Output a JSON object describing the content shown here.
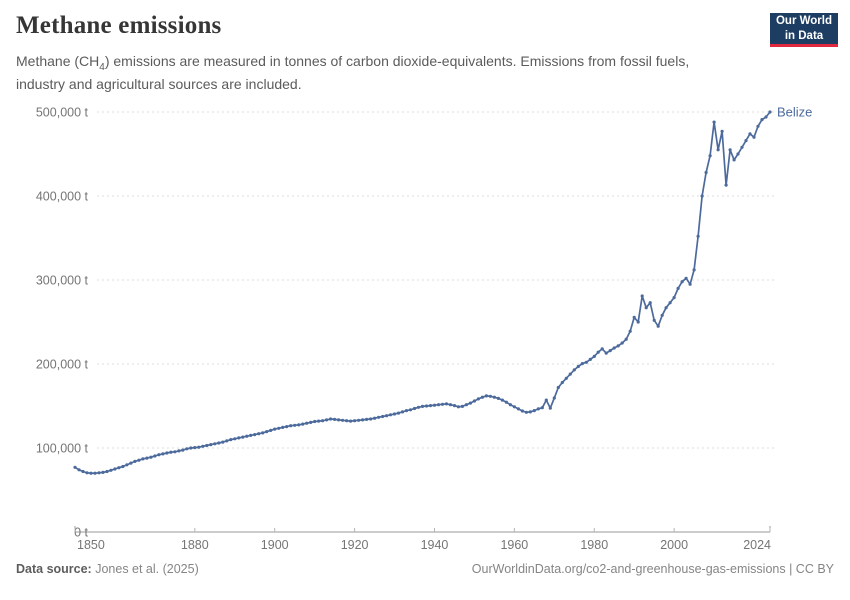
{
  "header": {
    "title": "Methane emissions",
    "subtitle": {
      "pre": "Methane (CH",
      "sub": "4",
      "post": ") emissions are measured in tonnes of carbon dioxide-equivalents. Emissions from fossil fuels, industry and agricultural sources are included."
    },
    "logo": {
      "line1": "Our World",
      "line2": "in Data",
      "bg": "#1d3d63",
      "accent": "#e0293e"
    }
  },
  "footer": {
    "source_label": "Data source:",
    "source_value": " Jones et al. (2025)",
    "right": "OurWorldinData.org/co2-and-greenhouse-gas-emissions | CC BY"
  },
  "chart_data": {
    "type": "line",
    "title": "Methane emissions",
    "unit": "t",
    "entity": "Belize",
    "line_color": "#4c6a9c",
    "grid": true,
    "legend_position": "end-of-line",
    "x_range": [
      1850,
      2024
    ],
    "x_ticks": [
      1850,
      1880,
      1900,
      1920,
      1940,
      1960,
      1980,
      2000,
      2024
    ],
    "ylim": [
      0,
      500000
    ],
    "y_ticks": [
      0,
      100000,
      200000,
      300000,
      400000,
      500000
    ],
    "y_tick_labels": [
      "0 t",
      "100,000 t",
      "200,000 t",
      "300,000 t",
      "400,000 t",
      "500,000 t"
    ],
    "series": [
      {
        "name": "Belize",
        "x_start": 1850,
        "values": [
          77000,
          74000,
          72000,
          70500,
          70000,
          70000,
          70500,
          71000,
          72000,
          73500,
          75000,
          76500,
          78000,
          80000,
          82000,
          84000,
          85500,
          87000,
          88000,
          89000,
          90500,
          92000,
          93000,
          94000,
          95000,
          95500,
          96500,
          97500,
          99000,
          100000,
          100500,
          101000,
          102000,
          103000,
          104000,
          105000,
          106000,
          107000,
          108500,
          110000,
          111000,
          112000,
          113000,
          114000,
          115000,
          116000,
          117000,
          118000,
          119500,
          121000,
          122500,
          123500,
          124500,
          125500,
          126500,
          127000,
          127500,
          128500,
          129500,
          130500,
          131500,
          132000,
          132500,
          133500,
          134500,
          134000,
          133500,
          133000,
          132500,
          132000,
          132500,
          133000,
          133500,
          134000,
          134500,
          135500,
          136500,
          137500,
          138500,
          139500,
          140500,
          141500,
          143000,
          144500,
          145500,
          147000,
          148500,
          149500,
          150000,
          150500,
          151000,
          151500,
          152000,
          152500,
          151500,
          150500,
          149000,
          149500,
          151500,
          153500,
          156000,
          158500,
          160500,
          162000,
          161500,
          160500,
          159000,
          157000,
          154500,
          151500,
          149000,
          146500,
          144000,
          142500,
          143000,
          144500,
          146500,
          148000,
          157000,
          147500,
          159500,
          172000,
          178000,
          183000,
          188000,
          193000,
          197000,
          200500,
          202000,
          205500,
          209000,
          214000,
          218000,
          213000,
          216000,
          219000,
          221500,
          225000,
          229500,
          239000,
          255500,
          250000,
          281000,
          267000,
          273000,
          252000,
          245000,
          258000,
          267000,
          273000,
          279000,
          290000,
          298000,
          302000,
          295000,
          312000,
          352000,
          400000,
          428000,
          448000,
          488000,
          455000,
          477000,
          413000,
          455000,
          443000,
          450000,
          458000,
          466000,
          474000,
          470000,
          483000,
          491000,
          494000,
          500000
        ]
      }
    ]
  }
}
